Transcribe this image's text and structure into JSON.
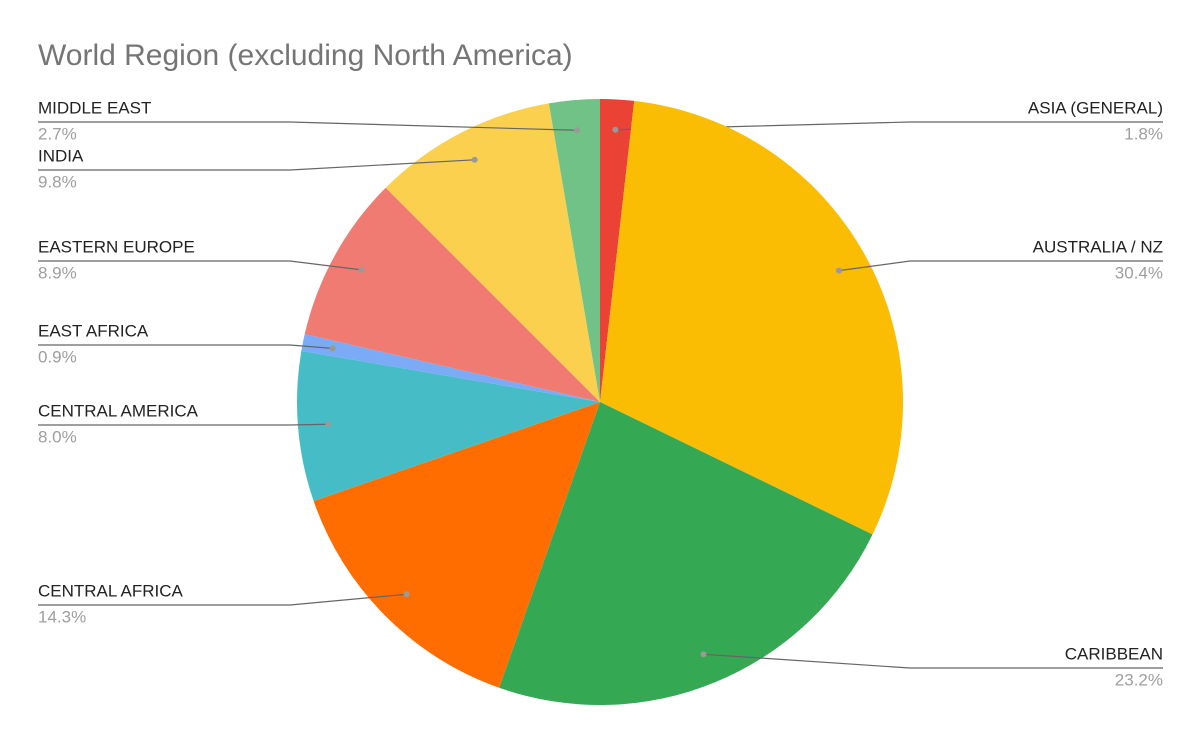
{
  "chart_data": {
    "type": "pie",
    "title": "World Region (excluding North America)",
    "categories": [
      "ASIA (GENERAL)",
      "AUSTRALIA / NZ",
      "CARIBBEAN",
      "CENTRAL AFRICA",
      "CENTRAL AMERICA",
      "EAST AFRICA",
      "EASTERN EUROPE",
      "INDIA",
      "MIDDLE EAST"
    ],
    "values": [
      1.8,
      30.4,
      23.2,
      14.3,
      8.0,
      0.9,
      8.9,
      9.8,
      2.7
    ],
    "value_labels": [
      "1.8%",
      "30.4%",
      "23.2%",
      "14.3%",
      "8.0%",
      "0.9%",
      "8.9%",
      "9.8%",
      "2.7%"
    ],
    "colors": [
      "#ea4335",
      "#fbbc04",
      "#34a853",
      "#ff6d01",
      "#46bdc6",
      "#7baaf7",
      "#f07b72",
      "#fcd04f",
      "#71c287"
    ]
  }
}
